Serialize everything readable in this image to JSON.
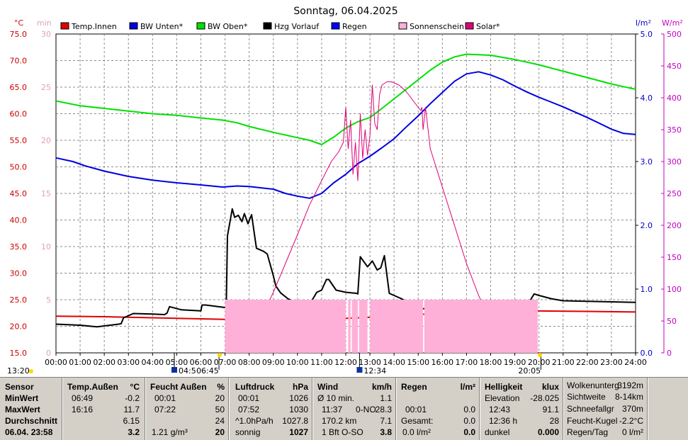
{
  "chart_data": {
    "type": "line",
    "title": "Sonntag, 06.04.2025",
    "x_ticks": [
      "00:00",
      "01:00",
      "02:00",
      "03:00",
      "04:00",
      "05:00",
      "06:00",
      "07:00",
      "08:00",
      "09:00",
      "10:00",
      "11:00",
      "12:00",
      "13:00",
      "14:00",
      "15:00",
      "16:00",
      "17:00",
      "18:00",
      "19:00",
      "20:00",
      "21:00",
      "22:00",
      "23:00",
      "24:00"
    ],
    "xlim_hours": [
      0,
      24
    ],
    "axes": {
      "temp": {
        "unit": "°C",
        "min": 15,
        "max": 75,
        "ticks": [
          "15.0",
          "20.0",
          "25.0",
          "30.0",
          "35.0",
          "40.0",
          "45.0",
          "50.0",
          "55.0",
          "60.0",
          "65.0",
          "70.0",
          "75.0"
        ]
      },
      "minutes": {
        "unit": "min",
        "min": 0,
        "max": 30,
        "ticks": [
          "0",
          "5",
          "10",
          "15",
          "20",
          "25",
          "30"
        ]
      },
      "rain": {
        "unit": "l/m²",
        "min": 0,
        "max": 5,
        "ticks": [
          "0.0",
          "1.0",
          "2.0",
          "3.0",
          "4.0",
          "5.0"
        ]
      },
      "solar": {
        "unit": "W/m²",
        "min": 0,
        "max": 500,
        "ticks": [
          "0",
          "50",
          "100",
          "150",
          "200",
          "250",
          "300",
          "350",
          "400",
          "450",
          "500"
        ]
      }
    },
    "legend": [
      {
        "name": "Temp.Innen",
        "color": "#e00000"
      },
      {
        "name": "BW Unten*",
        "color": "#0000e0"
      },
      {
        "name": "BW Oben*",
        "color": "#00e000"
      },
      {
        "name": "Hzg Vorlauf",
        "color": "#000000"
      },
      {
        "name": "Regen",
        "color": "#0000ff"
      },
      {
        "name": "Sonnenschein",
        "color": "#ffb0d8"
      },
      {
        "name": "Solar*",
        "color": "#e0007a"
      }
    ],
    "series": [
      {
        "name": "BW Oben*",
        "axis": "temp",
        "color": "#00e000",
        "x": [
          0,
          1,
          2,
          3,
          4,
          5,
          6,
          6.9,
          7.5,
          8,
          9,
          10,
          10.5,
          11,
          11.5,
          12,
          12.5,
          13,
          13.5,
          14,
          14.5,
          15,
          15.5,
          16,
          16.5,
          17,
          17.5,
          18,
          18.5,
          19,
          19.5,
          20,
          20.5,
          21,
          21.5,
          22,
          22.5,
          23,
          23.5,
          24
        ],
        "y": [
          62.4,
          61.5,
          61,
          60.5,
          60,
          59.7,
          59.2,
          58.8,
          58.3,
          57.6,
          56.5,
          55.5,
          55,
          54.2,
          55.6,
          57.3,
          58.5,
          59.3,
          61,
          62.8,
          64.6,
          66.4,
          68.2,
          69.7,
          70.7,
          71.2,
          71.1,
          71,
          70.6,
          70.2,
          69.7,
          69.2,
          68.6,
          68,
          67.4,
          66.8,
          66.2,
          65.6,
          65.1,
          64.6
        ]
      },
      {
        "name": "BW Unten*",
        "axis": "temp",
        "color": "#0000e0",
        "x": [
          0,
          0.7,
          1.2,
          2,
          3,
          4,
          5,
          6,
          6.9,
          7.5,
          8,
          9,
          9.5,
          10,
          10.5,
          11,
          11.5,
          12,
          12.5,
          13,
          13.5,
          14,
          14.5,
          15,
          15.5,
          16,
          16.5,
          17,
          17.5,
          18,
          18.5,
          19,
          19.5,
          20,
          20.5,
          21,
          21.5,
          22,
          22.5,
          23,
          23.5,
          24
        ],
        "y": [
          51.7,
          51,
          50.2,
          49.2,
          48.2,
          47.5,
          47,
          46.6,
          46.2,
          46.4,
          46.3,
          45.8,
          45,
          44.5,
          44.1,
          45,
          47,
          48.6,
          50.6,
          52,
          53.6,
          55.3,
          57.5,
          59.6,
          61.9,
          64,
          66.1,
          67.5,
          67.9,
          67.3,
          66.4,
          65.2,
          64.1,
          63.1,
          62.2,
          61.3,
          60.3,
          59.3,
          58.2,
          57.1,
          56.3,
          56.1
        ]
      },
      {
        "name": "Temp.Innen",
        "axis": "temp",
        "color": "#e00000",
        "x": [
          0,
          2,
          4,
          6,
          7,
          8,
          10,
          12,
          14,
          16,
          17,
          18,
          19,
          20,
          22,
          24
        ],
        "y": [
          21.9,
          21.8,
          21.6,
          21.4,
          21.3,
          21.3,
          21.2,
          21.5,
          21.9,
          22.5,
          22.9,
          23.4,
          23.3,
          22.9,
          22.8,
          22.7
        ]
      },
      {
        "name": "Hzg Vorlauf",
        "axis": "temp",
        "color": "#000000",
        "x": [
          0,
          1,
          1.7,
          2.6,
          2.7,
          2.8,
          3.2,
          4,
          4.5,
          4.6,
          4.7,
          5.2,
          6,
          6.05,
          6.2,
          7.05,
          7.1,
          7.3,
          7.4,
          7.55,
          7.7,
          7.8,
          7.95,
          8.1,
          8.3,
          8.6,
          8.75,
          9,
          9.1,
          9.3,
          9.6,
          10,
          10.3,
          10.5,
          10.8,
          11,
          11.2,
          11.3,
          11.6,
          12,
          12.45,
          12.5,
          12.6,
          12.9,
          13.1,
          13.3,
          13.45,
          13.6,
          13.8,
          14.3,
          15,
          16,
          17,
          18,
          18.5,
          19,
          19.1,
          19.3,
          19.6,
          19.8,
          20,
          20.5,
          21,
          22,
          23,
          24
        ],
        "y": [
          20.4,
          20.2,
          19.9,
          20.4,
          20.5,
          21.6,
          22.4,
          22.3,
          22.2,
          22.5,
          23.7,
          23.1,
          22.9,
          24,
          24,
          23.5,
          37,
          42.1,
          40.5,
          40.9,
          39.7,
          41.2,
          39.3,
          41,
          34.7,
          34.1,
          33.6,
          29.5,
          27.6,
          26.3,
          25.2,
          24.3,
          24.1,
          24.1,
          26.4,
          26.8,
          28.8,
          28.8,
          26.8,
          26.4,
          26.2,
          26.1,
          33.1,
          31.2,
          32.3,
          30.6,
          31,
          33.3,
          26.2,
          25.2,
          23.4,
          23,
          22.8,
          22.6,
          22.5,
          22.5,
          22.2,
          22.2,
          24.6,
          26.1,
          25.8,
          25.2,
          24.8,
          24.7,
          24.6,
          24.5
        ]
      },
      {
        "name": "Solar*",
        "axis": "solar",
        "color": "#e0007a",
        "x": [
          7.1,
          7.5,
          8,
          8.5,
          9,
          9.5,
          10,
          10.5,
          11,
          11.4,
          11.7,
          11.9,
          12,
          12.1,
          12.2,
          12.3,
          12.4,
          12.5,
          12.6,
          12.7,
          12.8,
          12.9,
          13,
          13.1,
          13.2,
          13.3,
          13.4,
          13.5,
          13.7,
          13.9,
          14.2,
          14.5,
          14.8,
          15,
          15.1,
          15.15,
          15.2,
          15.3,
          15.5,
          16,
          16.5,
          17,
          17.5,
          18,
          18.5,
          19,
          19.5,
          20.05
        ],
        "y": [
          0,
          8,
          25,
          55,
          95,
          140,
          185,
          232,
          270,
          300,
          315,
          330,
          385,
          320,
          365,
          280,
          330,
          270,
          375,
          305,
          350,
          310,
          340,
          420,
          360,
          350,
          405,
          420,
          425,
          425,
          420,
          410,
          395,
          385,
          380,
          385,
          350,
          385,
          320,
          260,
          200,
          140,
          90,
          50,
          25,
          10,
          4,
          0
        ]
      },
      {
        "name": "Sonnenschein",
        "axis": "minutes",
        "color": "#ffb0d8",
        "bars": [
          {
            "from": 7.0,
            "to": 12.0,
            "value": 5
          },
          {
            "from": 12.1,
            "to": 12.2,
            "value": 5
          },
          {
            "from": 12.25,
            "to": 12.5,
            "value": 5
          },
          {
            "from": 12.55,
            "to": 12.9,
            "value": 5
          },
          {
            "from": 13.0,
            "to": 15.2,
            "value": 5
          },
          {
            "from": 15.25,
            "to": 19.95,
            "value": 5
          }
        ]
      }
    ],
    "annotations": [
      {
        "text": "13:20",
        "x": 0
      },
      {
        "text": "04:5",
        "x": 4.9
      },
      {
        "text": "06:45",
        "x": 6.75
      },
      {
        "text": "12:34",
        "x": 12.57
      },
      {
        "text": "20:05",
        "x": 20.08
      }
    ]
  },
  "panel": {
    "sensor": {
      "title": "Sensor",
      "rows": [
        "MinWert",
        "MaxWert",
        "Durchschnitt",
        "06.04. 23:58"
      ]
    },
    "temp": {
      "title": "Temp.Außen",
      "unit": "°C",
      "rows": [
        [
          "06:49",
          "-0.2"
        ],
        [
          "16:16",
          "11.7"
        ],
        [
          "",
          "6.15"
        ],
        [
          "",
          "3.2"
        ]
      ]
    },
    "feucht": {
      "title": "Feucht Außen",
      "unit": "%",
      "rows": [
        [
          "00:01",
          "20"
        ],
        [
          "07:22",
          "50"
        ],
        [
          "",
          "24"
        ],
        [
          "1.21 g/m³",
          "20"
        ]
      ]
    },
    "luft": {
      "title": "Luftdruck",
      "unit": "hPa",
      "rows": [
        [
          "00:01",
          "1026"
        ],
        [
          "07:52",
          "1030"
        ],
        [
          "^1.0hPa/h",
          "1027.8"
        ],
        [
          "sonnig",
          "1027"
        ]
      ]
    },
    "wind": {
      "title": "Wind",
      "unit": "km/h",
      "rows": [
        [
          "Ø 10 min.",
          "",
          "1.1"
        ],
        [
          "11:37",
          "0-NO",
          "28.3"
        ],
        [
          "170.2 km",
          "",
          "7.1"
        ],
        [
          "1 Bft O-SO",
          "",
          "3.8"
        ]
      ]
    },
    "regen": {
      "title": "Regen",
      "unit": "l/m²",
      "rows": [
        [
          "",
          "",
          ""
        ],
        [
          "00:01",
          "0.0"
        ],
        [
          "Gesamt:",
          "0.0"
        ],
        [
          "0.0 l/m²",
          "0.0"
        ]
      ]
    },
    "hell": {
      "title": "Helligkeit",
      "unit": "klux",
      "rows": [
        [
          "Elevation",
          "-28.025"
        ],
        [
          "12:43",
          "91.1"
        ],
        [
          "12:36 h",
          "28"
        ],
        [
          "dunkel",
          "0.000"
        ]
      ]
    },
    "extra": {
      "rows": [
        [
          "Wolkenunterg",
          "3192m"
        ],
        [
          "Sichtweite",
          "8-14km"
        ],
        [
          "Schneefallgr",
          "370m"
        ],
        [
          "Feucht-Kugel",
          "-2.2°C"
        ],
        [
          "Regen/Tag",
          "0 l/m²"
        ]
      ]
    }
  }
}
